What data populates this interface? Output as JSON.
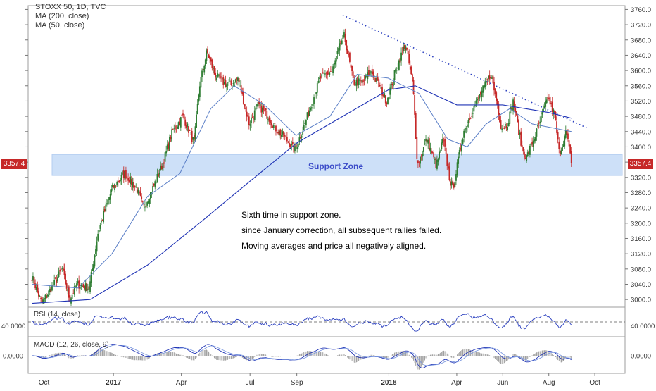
{
  "legend": {
    "title": "STOXX 50, 1D, TVC",
    "ma200": "MA (200, close)",
    "ma50": "MA (50, close)"
  },
  "rsi_label": "RSI (14, close)",
  "macd_label": "MACD (12, 26, close, 9)",
  "zone_label": "Support Zone",
  "annotations": [
    "Sixth time in support zone.",
    "since January correction, all subsequent rallies failed.",
    "Moving averages and price all negatively aligned."
  ],
  "last_price": "3357.4",
  "colors": {
    "up": "#2e7d32",
    "down": "#c62828",
    "ma_fast": "#5b7fc7",
    "ma_slow": "#1f33b5",
    "zone": "#c5dbf7",
    "trend": "#2a3fbf",
    "rsi": "#2a3fbf"
  },
  "chart_data": {
    "type": "candlestick",
    "price_axis": {
      "min": 2980,
      "max": 3770,
      "ticks": [
        "3760.0",
        "3720.0",
        "3680.0",
        "3640.0",
        "3600.0",
        "3560.0",
        "3520.0",
        "3480.0",
        "3440.0",
        "3400.0",
        "3360.0",
        "3320.0",
        "3280.0",
        "3240.0",
        "3200.0",
        "3160.0",
        "3120.0",
        "3080.0",
        "3040.0",
        "3000.0"
      ]
    },
    "time_axis": {
      "labels": [
        "Oct",
        "2017",
        "Apr",
        "Jul",
        "Sep",
        "2018",
        "Apr",
        "Jun",
        "Aug",
        "Oct"
      ]
    },
    "price_path": [
      [
        "2016-09-15",
        3060
      ],
      [
        "2016-09-28",
        2990
      ],
      [
        "2016-10-14",
        3040
      ],
      [
        "2016-10-25",
        3080
      ],
      [
        "2016-11-04",
        3000
      ],
      [
        "2016-11-14",
        3040
      ],
      [
        "2016-11-30",
        3030
      ],
      [
        "2016-12-12",
        3180
      ],
      [
        "2016-12-30",
        3290
      ],
      [
        "2017-01-16",
        3330
      ],
      [
        "2017-02-01",
        3290
      ],
      [
        "2017-02-10",
        3240
      ],
      [
        "2017-02-24",
        3300
      ],
      [
        "2017-03-08",
        3360
      ],
      [
        "2017-03-20",
        3440
      ],
      [
        "2017-04-03",
        3480
      ],
      [
        "2017-04-18",
        3410
      ],
      [
        "2017-04-25",
        3560
      ],
      [
        "2017-05-05",
        3650
      ],
      [
        "2017-05-15",
        3590
      ],
      [
        "2017-05-25",
        3570
      ],
      [
        "2017-06-05",
        3560
      ],
      [
        "2017-06-15",
        3580
      ],
      [
        "2017-06-30",
        3460
      ],
      [
        "2017-07-12",
        3510
      ],
      [
        "2017-07-25",
        3480
      ],
      [
        "2017-08-03",
        3450
      ],
      [
        "2017-08-18",
        3420
      ],
      [
        "2017-08-29",
        3390
      ],
      [
        "2017-09-08",
        3440
      ],
      [
        "2017-09-20",
        3510
      ],
      [
        "2017-10-02",
        3580
      ],
      [
        "2017-10-18",
        3600
      ],
      [
        "2017-10-31",
        3680
      ],
      [
        "2017-11-03",
        3690
      ],
      [
        "2017-11-15",
        3570
      ],
      [
        "2017-11-28",
        3570
      ],
      [
        "2017-12-08",
        3600
      ],
      [
        "2017-12-19",
        3560
      ],
      [
        "2017-12-29",
        3520
      ],
      [
        "2018-01-10",
        3600
      ],
      [
        "2018-01-23",
        3670
      ],
      [
        "2018-02-02",
        3560
      ],
      [
        "2018-02-08",
        3350
      ],
      [
        "2018-02-20",
        3420
      ],
      [
        "2018-03-05",
        3350
      ],
      [
        "2018-03-14",
        3420
      ],
      [
        "2018-03-23",
        3310
      ],
      [
        "2018-03-27",
        3290
      ],
      [
        "2018-04-10",
        3440
      ],
      [
        "2018-04-23",
        3500
      ],
      [
        "2018-05-03",
        3540
      ],
      [
        "2018-05-16",
        3590
      ],
      [
        "2018-05-25",
        3510
      ],
      [
        "2018-05-30",
        3450
      ],
      [
        "2018-06-07",
        3460
      ],
      [
        "2018-06-15",
        3520
      ],
      [
        "2018-06-26",
        3400
      ],
      [
        "2018-07-02",
        3370
      ],
      [
        "2018-07-16",
        3440
      ],
      [
        "2018-07-31",
        3530
      ],
      [
        "2018-08-09",
        3480
      ],
      [
        "2018-08-15",
        3380
      ],
      [
        "2018-08-24",
        3440
      ],
      [
        "2018-08-31",
        3357
      ]
    ],
    "ma50_path": [
      [
        "2016-09-15",
        3040
      ],
      [
        "2016-11-15",
        3030
      ],
      [
        "2016-12-30",
        3120
      ],
      [
        "2017-02-15",
        3270
      ],
      [
        "2017-03-30",
        3330
      ],
      [
        "2017-05-10",
        3500
      ],
      [
        "2017-06-10",
        3560
      ],
      [
        "2017-07-20",
        3510
      ],
      [
        "2017-08-31",
        3430
      ],
      [
        "2017-10-15",
        3480
      ],
      [
        "2017-11-20",
        3590
      ],
      [
        "2017-12-31",
        3580
      ],
      [
        "2018-02-10",
        3540
      ],
      [
        "2018-03-20",
        3420
      ],
      [
        "2018-04-15",
        3400
      ],
      [
        "2018-05-10",
        3460
      ],
      [
        "2018-06-10",
        3500
      ],
      [
        "2018-07-10",
        3460
      ],
      [
        "2018-08-31",
        3440
      ]
    ],
    "ma200_path": [
      [
        "2016-09-15",
        2990
      ],
      [
        "2016-12-01",
        3000
      ],
      [
        "2017-02-15",
        3090
      ],
      [
        "2017-05-01",
        3210
      ],
      [
        "2017-07-01",
        3310
      ],
      [
        "2017-09-01",
        3410
      ],
      [
        "2017-11-01",
        3480
      ],
      [
        "2018-01-01",
        3550
      ],
      [
        "2018-02-05",
        3560
      ],
      [
        "2018-04-01",
        3510
      ],
      [
        "2018-06-01",
        3510
      ],
      [
        "2018-08-01",
        3490
      ],
      [
        "2018-08-31",
        3475
      ]
    ],
    "support_zone": {
      "low": 3325,
      "high": 3380
    },
    "trend_line": {
      "from": [
        "2017-11-01",
        3745
      ],
      "to": [
        "2018-09-20",
        3450
      ]
    },
    "rsi": {
      "ticks": [
        "40.0000"
      ],
      "level": 50
    },
    "macd": {
      "ticks": [
        "0.0000"
      ]
    }
  }
}
